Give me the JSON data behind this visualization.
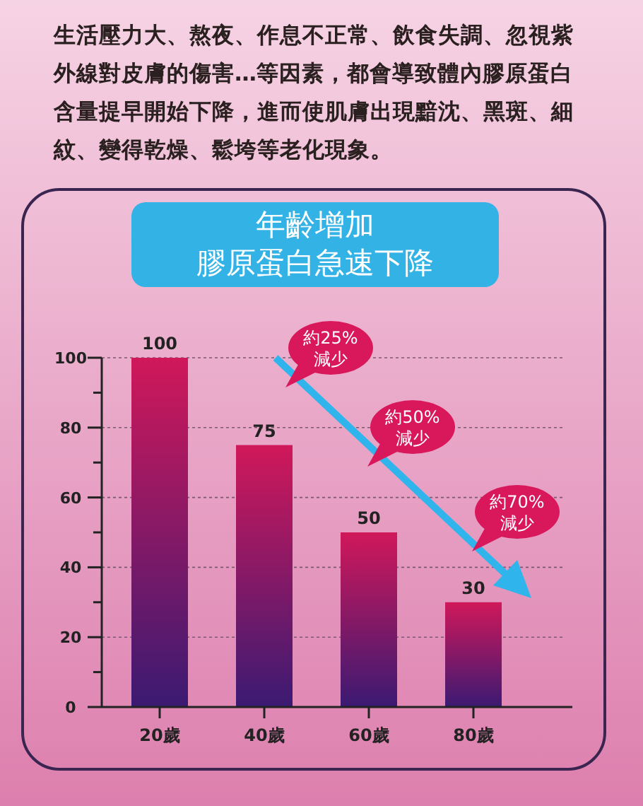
{
  "chart_data": {
    "type": "bar",
    "subtitle": "生活壓力大、熬夜、作息不正常、飲食失調、忽視紫外線對皮膚的傷害…等因素，都會導致體內膠原蛋白含量提早開始下降，進而使肌膚出現黯沈、黑斑、細紋、變得乾燥、鬆垮等老化現象。",
    "title": "年齡增加膠原蛋白急速下降",
    "categories": [
      "20歲",
      "40歲",
      "60歲",
      "80歲"
    ],
    "values": [
      100,
      75,
      50,
      30
    ],
    "color": "#d0185a",
    "data_labels": true,
    "ylim": [
      0,
      100
    ],
    "yticks": [
      0,
      {
        "value": 10,
        "label": null
      },
      20,
      {
        "value": 30,
        "label": null
      },
      40,
      {
        "value": 50,
        "label": null
      },
      60,
      {
        "value": 70,
        "label": null
      },
      80,
      {
        "value": 90,
        "label": null
      },
      100
    ],
    "grid": "y",
    "annotations": [
      "約25%減少",
      "約50%減少",
      "約70%減少"
    ]
  }
}
